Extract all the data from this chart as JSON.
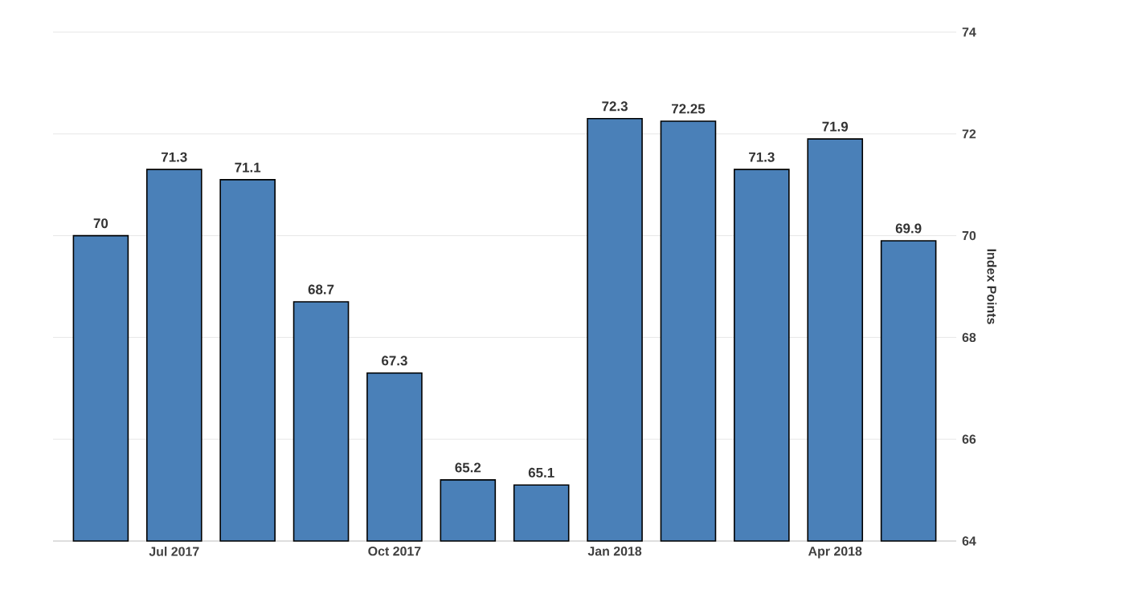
{
  "chart_data": {
    "type": "bar",
    "ylabel": "Index Points",
    "categories": [
      null,
      "Jul 2017",
      null,
      null,
      "Oct 2017",
      null,
      null,
      "Jan 2018",
      null,
      null,
      "Apr 2018",
      null
    ],
    "values": [
      70,
      71.3,
      71.1,
      68.7,
      67.3,
      65.2,
      65.1,
      72.3,
      72.25,
      71.3,
      71.9,
      69.9
    ],
    "color": "#4a80b8",
    "ylim": [
      64,
      74
    ],
    "yticks": [
      64,
      66,
      68,
      70,
      72,
      74
    ],
    "grid": "y",
    "data_labels": true
  }
}
